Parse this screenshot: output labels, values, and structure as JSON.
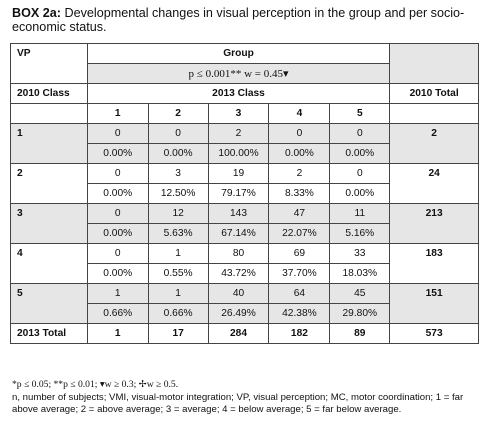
{
  "title": {
    "box": "BOX 2a:",
    "text": " Developmental changes in visual perception in the group and per socio-economic status."
  },
  "header": {
    "vp": "VP",
    "group": "Group",
    "stat": "p ≤ 0.001** w = 0.45▾",
    "class2010": "2010 Class",
    "class2013": "2013 Class",
    "total2010": "2010 Total",
    "classes": [
      "1",
      "2",
      "3",
      "4",
      "5"
    ]
  },
  "rows": [
    {
      "vp": "1",
      "counts": [
        "0",
        "0",
        "2",
        "0",
        "0"
      ],
      "pcts": [
        "0.00%",
        "0.00%",
        "100.00%",
        "0.00%",
        "0.00%"
      ],
      "total": "2"
    },
    {
      "vp": "2",
      "counts": [
        "0",
        "3",
        "19",
        "2",
        "0"
      ],
      "pcts": [
        "0.00%",
        "12.50%",
        "79.17%",
        "8.33%",
        "0.00%"
      ],
      "total": "24"
    },
    {
      "vp": "3",
      "counts": [
        "0",
        "12",
        "143",
        "47",
        "11"
      ],
      "pcts": [
        "0.00%",
        "5.63%",
        "67.14%",
        "22.07%",
        "5.16%"
      ],
      "total": "213"
    },
    {
      "vp": "4",
      "counts": [
        "0",
        "1",
        "80",
        "69",
        "33"
      ],
      "pcts": [
        "0.00%",
        "0.55%",
        "43.72%",
        "37.70%",
        "18.03%"
      ],
      "total": "183"
    },
    {
      "vp": "5",
      "counts": [
        "1",
        "1",
        "40",
        "64",
        "45"
      ],
      "pcts": [
        "0.66%",
        "0.66%",
        "26.49%",
        "42.38%",
        "29.80%"
      ],
      "total": "151"
    }
  ],
  "totals": {
    "label": "2013 Total",
    "values": [
      "1",
      "17",
      "284",
      "182",
      "89"
    ],
    "grand": "573"
  },
  "notes": {
    "line1": "*p ≤ 0.05; **p ≤ 0.01; ▾w ≥ 0.3; ✢w ≥ 0.5.",
    "line2": "n, number of subjects; VMI, visual-motor integration; VP, visual perception; MC, motor coordination; 1 = far above average; 2 = above average; 3 = average; 4 = below average; 5 = far below average."
  }
}
